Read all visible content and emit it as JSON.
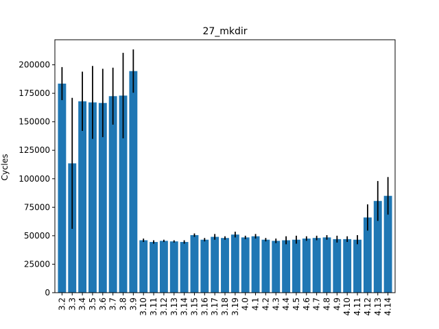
{
  "chart_data": {
    "type": "bar",
    "title": "27_mkdir",
    "xlabel": "",
    "ylabel": "Cycles",
    "ylim": [
      0,
      222000
    ],
    "yticks": [
      0,
      25000,
      50000,
      75000,
      100000,
      125000,
      150000,
      175000,
      200000
    ],
    "ytick_labels": [
      "0",
      "25000",
      "50000",
      "75000",
      "100000",
      "125000",
      "150000",
      "175000",
      "200000"
    ],
    "grid": false,
    "bar_color": "#1f77b4",
    "error_color": "#000000",
    "categories": [
      "3.2",
      "3.3",
      "3.4",
      "3.5",
      "3.6",
      "3.7",
      "3.8",
      "3.9",
      "3.10",
      "3.11",
      "3.12",
      "3.13",
      "3.14",
      "3.15",
      "3.16",
      "3.17",
      "3.18",
      "3.19",
      "4.0",
      "4.1",
      "4.2",
      "4.3",
      "4.4",
      "4.5",
      "4.6",
      "4.7",
      "4.8",
      "4.9",
      "4.10",
      "4.11",
      "4.12",
      "4.13",
      "4.14"
    ],
    "values": [
      183500,
      113500,
      168000,
      167000,
      166500,
      172500,
      173000,
      194500,
      46000,
      44500,
      45500,
      45000,
      44500,
      50500,
      46500,
      49000,
      48000,
      51000,
      48500,
      49500,
      46500,
      45500,
      46000,
      46500,
      47500,
      48000,
      48500,
      47000,
      47000,
      46500,
      66000,
      80500,
      85000
    ],
    "errors": [
      14500,
      57500,
      26000,
      32000,
      30000,
      25000,
      37500,
      19000,
      1500,
      1500,
      1000,
      1000,
      1500,
      1500,
      1500,
      2500,
      1500,
      2500,
      1500,
      2000,
      1500,
      2000,
      3500,
      3500,
      2000,
      2000,
      2000,
      3000,
      2500,
      4000,
      11500,
      17500,
      16500
    ]
  }
}
